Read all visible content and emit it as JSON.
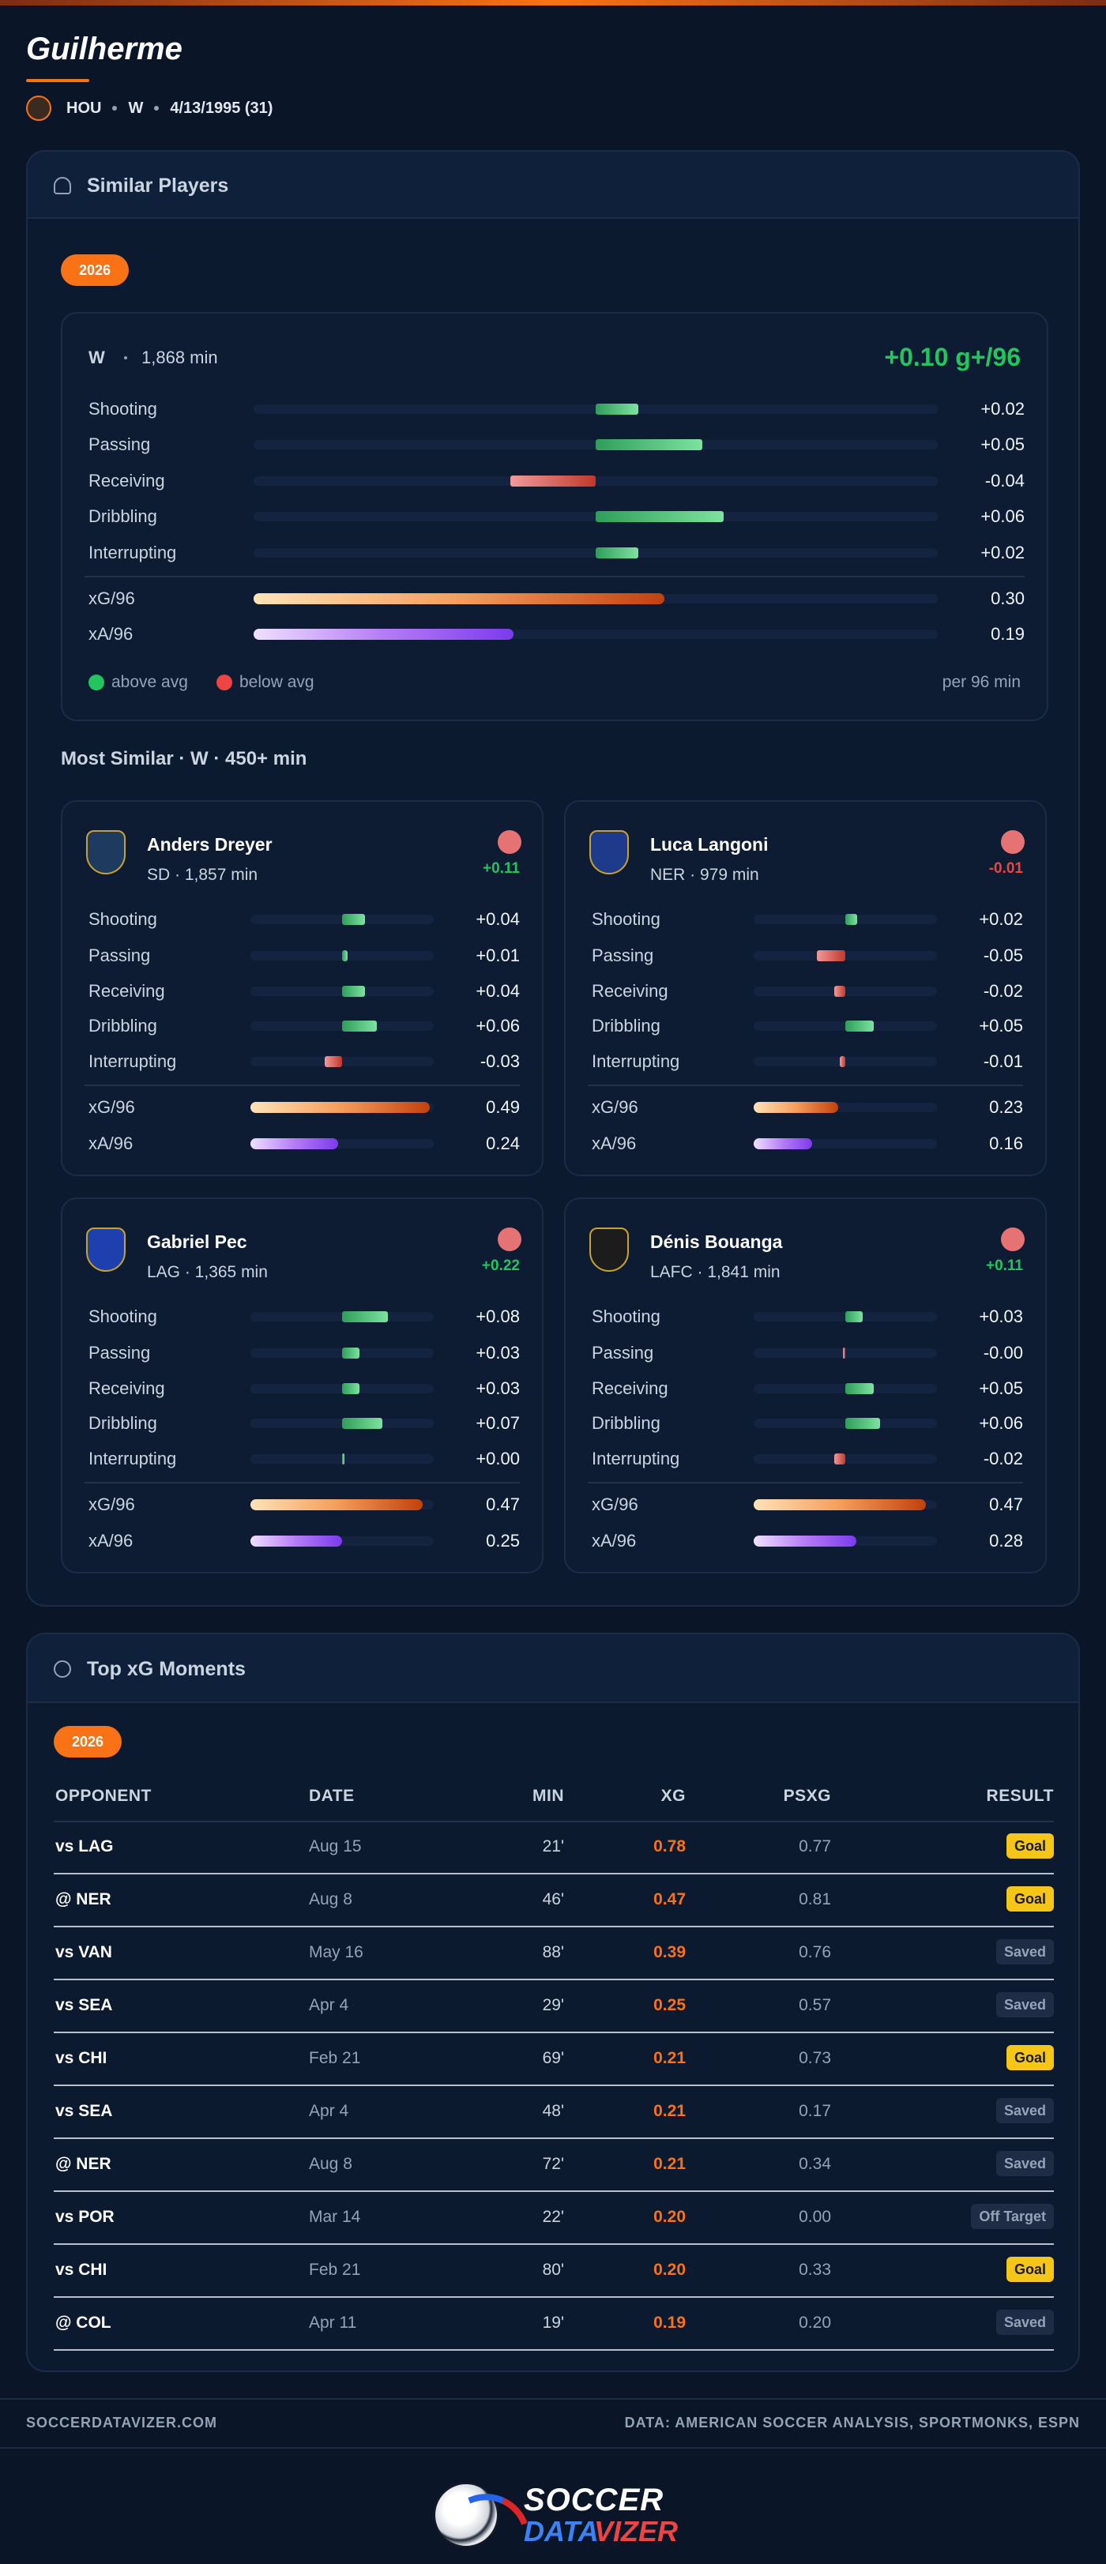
{
  "player": {
    "name": "Guilherme",
    "team": "HOU",
    "position": "W",
    "dob": "4/13/1995 (31)"
  },
  "similar_players": {
    "title": "Similar Players",
    "season": "2026",
    "profile": {
      "position": "W",
      "minutes": "1,868 min",
      "score": "+0.10 g+/96",
      "metrics": [
        {
          "name": "Shooting",
          "value": 0.02,
          "label": "+0.02"
        },
        {
          "name": "Passing",
          "value": 0.05,
          "label": "+0.05"
        },
        {
          "name": "Receiving",
          "value": -0.04,
          "label": "-0.04"
        },
        {
          "name": "Dribbling",
          "value": 0.06,
          "label": "+0.06"
        },
        {
          "name": "Interrupting",
          "value": 0.02,
          "label": "+0.02"
        }
      ],
      "xg": {
        "name": "xG/96",
        "value": 0.3,
        "label": "0.30"
      },
      "xa": {
        "name": "xA/96",
        "value": 0.19,
        "label": "0.19"
      },
      "legend": {
        "above": "above avg",
        "below": "below avg",
        "note": "per 96 min"
      }
    },
    "subtitle": "Most Similar · W · 450+ min",
    "players": [
      {
        "name": "Anders Dreyer",
        "info": "SD · 1,857 min",
        "score": {
          "value": 0.11,
          "label": "+0.11"
        },
        "metrics": [
          {
            "name": "Shooting",
            "value": 0.04,
            "label": "+0.04"
          },
          {
            "name": "Passing",
            "value": 0.01,
            "label": "+0.01"
          },
          {
            "name": "Receiving",
            "value": 0.04,
            "label": "+0.04"
          },
          {
            "name": "Dribbling",
            "value": 0.06,
            "label": "+0.06"
          },
          {
            "name": "Interrupting",
            "value": -0.03,
            "label": "-0.03"
          }
        ],
        "xg": {
          "name": "xG/96",
          "value": 0.49,
          "label": "0.49"
        },
        "xa": {
          "name": "xA/96",
          "value": 0.24,
          "label": "0.24"
        }
      },
      {
        "name": "Luca Langoni",
        "info": "NER · 979 min",
        "score": {
          "value": -0.01,
          "label": "-0.01"
        },
        "metrics": [
          {
            "name": "Shooting",
            "value": 0.02,
            "label": "+0.02"
          },
          {
            "name": "Passing",
            "value": -0.05,
            "label": "-0.05"
          },
          {
            "name": "Receiving",
            "value": -0.02,
            "label": "-0.02"
          },
          {
            "name": "Dribbling",
            "value": 0.05,
            "label": "+0.05"
          },
          {
            "name": "Interrupting",
            "value": -0.01,
            "label": "-0.01"
          }
        ],
        "xg": {
          "name": "xG/96",
          "value": 0.23,
          "label": "0.23"
        },
        "xa": {
          "name": "xA/96",
          "value": 0.16,
          "label": "0.16"
        }
      },
      {
        "name": "Gabriel Pec",
        "info": "LAG · 1,365 min",
        "score": {
          "value": 0.22,
          "label": "+0.22"
        },
        "metrics": [
          {
            "name": "Shooting",
            "value": 0.08,
            "label": "+0.08"
          },
          {
            "name": "Passing",
            "value": 0.03,
            "label": "+0.03"
          },
          {
            "name": "Receiving",
            "value": 0.03,
            "label": "+0.03"
          },
          {
            "name": "Dribbling",
            "value": 0.07,
            "label": "+0.07"
          },
          {
            "name": "Interrupting",
            "value": 0.0,
            "label": "+0.00"
          }
        ],
        "xg": {
          "name": "xG/96",
          "value": 0.47,
          "label": "0.47"
        },
        "xa": {
          "name": "xA/96",
          "value": 0.25,
          "label": "0.25"
        }
      },
      {
        "name": "Dénis Bouanga",
        "info": "LAFC · 1,841 min",
        "score": {
          "value": 0.11,
          "label": "+0.11"
        },
        "metrics": [
          {
            "name": "Shooting",
            "value": 0.03,
            "label": "+0.03"
          },
          {
            "name": "Passing",
            "value": -0.0,
            "label": "-0.00"
          },
          {
            "name": "Receiving",
            "value": 0.05,
            "label": "+0.05"
          },
          {
            "name": "Dribbling",
            "value": 0.06,
            "label": "+0.06"
          },
          {
            "name": "Interrupting",
            "value": -0.02,
            "label": "-0.02"
          }
        ],
        "xg": {
          "name": "xG/96",
          "value": 0.47,
          "label": "0.47"
        },
        "xa": {
          "name": "xA/96",
          "value": 0.28,
          "label": "0.28"
        }
      }
    ]
  },
  "top_xg": {
    "title": "Top xG Moments",
    "season": "2026",
    "columns": [
      "OPPONENT",
      "DATE",
      "MIN",
      "XG",
      "PSXG",
      "RESULT"
    ],
    "rows": [
      [
        "vs LAG",
        "Aug 15",
        "21'",
        "0.78",
        "0.77",
        "Goal"
      ],
      [
        "@ NER",
        "Aug 8",
        "46'",
        "0.47",
        "0.81",
        "Goal"
      ],
      [
        "vs VAN",
        "May 16",
        "88'",
        "0.39",
        "0.76",
        "Saved"
      ],
      [
        "vs SEA",
        "Apr 4",
        "29'",
        "0.25",
        "0.57",
        "Saved"
      ],
      [
        "vs CHI",
        "Feb 21",
        "69'",
        "0.21",
        "0.73",
        "Goal"
      ],
      [
        "vs SEA",
        "Apr 4",
        "48'",
        "0.21",
        "0.17",
        "Saved"
      ],
      [
        "@ NER",
        "Aug 8",
        "72'",
        "0.21",
        "0.34",
        "Saved"
      ],
      [
        "vs POR",
        "Mar 14",
        "22'",
        "0.20",
        "0.00",
        "Off Target"
      ],
      [
        "vs CHI",
        "Feb 21",
        "80'",
        "0.20",
        "0.33",
        "Goal"
      ],
      [
        "@ COL",
        "Apr 11",
        "19'",
        "0.19",
        "0.20",
        "Saved"
      ]
    ],
    "badge_colors": {
      "Goal": {
        "bg": "#f5c518",
        "fg": "#1a1a1a"
      }
    }
  },
  "footer": {
    "site": "SOCCERDATAVIZER.COM",
    "source": "DATA: AMERICAN SOCCER ANALYSIS, SPORTMONKS, ESPN"
  },
  "logo": {
    "line1": "SOCCER",
    "line2a": "DATA",
    "line2b": "VIZER"
  }
}
